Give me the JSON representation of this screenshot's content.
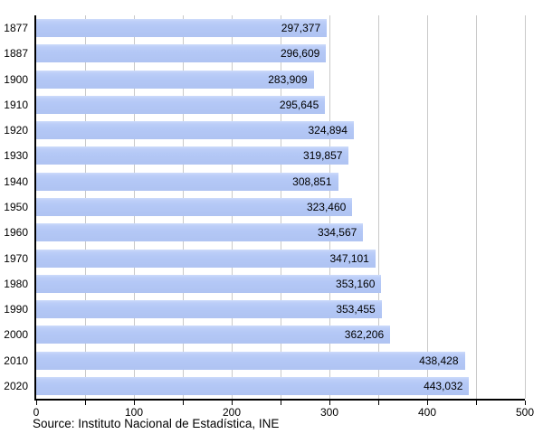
{
  "chart_data": {
    "type": "bar",
    "orientation": "horizontal",
    "title": "",
    "xlabel": "",
    "ylabel": "",
    "categories": [
      "1877",
      "1887",
      "1900",
      "1910",
      "1920",
      "1930",
      "1940",
      "1950",
      "1960",
      "1970",
      "1980",
      "1990",
      "2000",
      "2010",
      "2020"
    ],
    "values": [
      297377,
      296609,
      283909,
      295645,
      324894,
      319857,
      308851,
      323460,
      334567,
      347101,
      353160,
      353455,
      362206,
      438428,
      443032
    ],
    "value_labels": [
      "297,377",
      "296,609",
      "283,909",
      "295,645",
      "324,894",
      "319,857",
      "308,851",
      "323,460",
      "334,567",
      "347,101",
      "353,160",
      "353,455",
      "362,206",
      "438,428",
      "443,032"
    ],
    "xlim": [
      0,
      500000
    ],
    "x_tick_step": 100000,
    "x_grid_step": 50000,
    "x_tick_labels": [
      "0",
      "100",
      "200",
      "300",
      "400",
      "500"
    ],
    "grid": true,
    "legend": false,
    "source": "Source: Instituto Nacional de Estadística, INE",
    "colors": {
      "bar": "#b4c8f6",
      "bar_top_highlight": "#cddbfa",
      "gridline": "#c9c9c9",
      "axis": "#000000",
      "text": "#000000",
      "background": "#ffffff"
    }
  }
}
